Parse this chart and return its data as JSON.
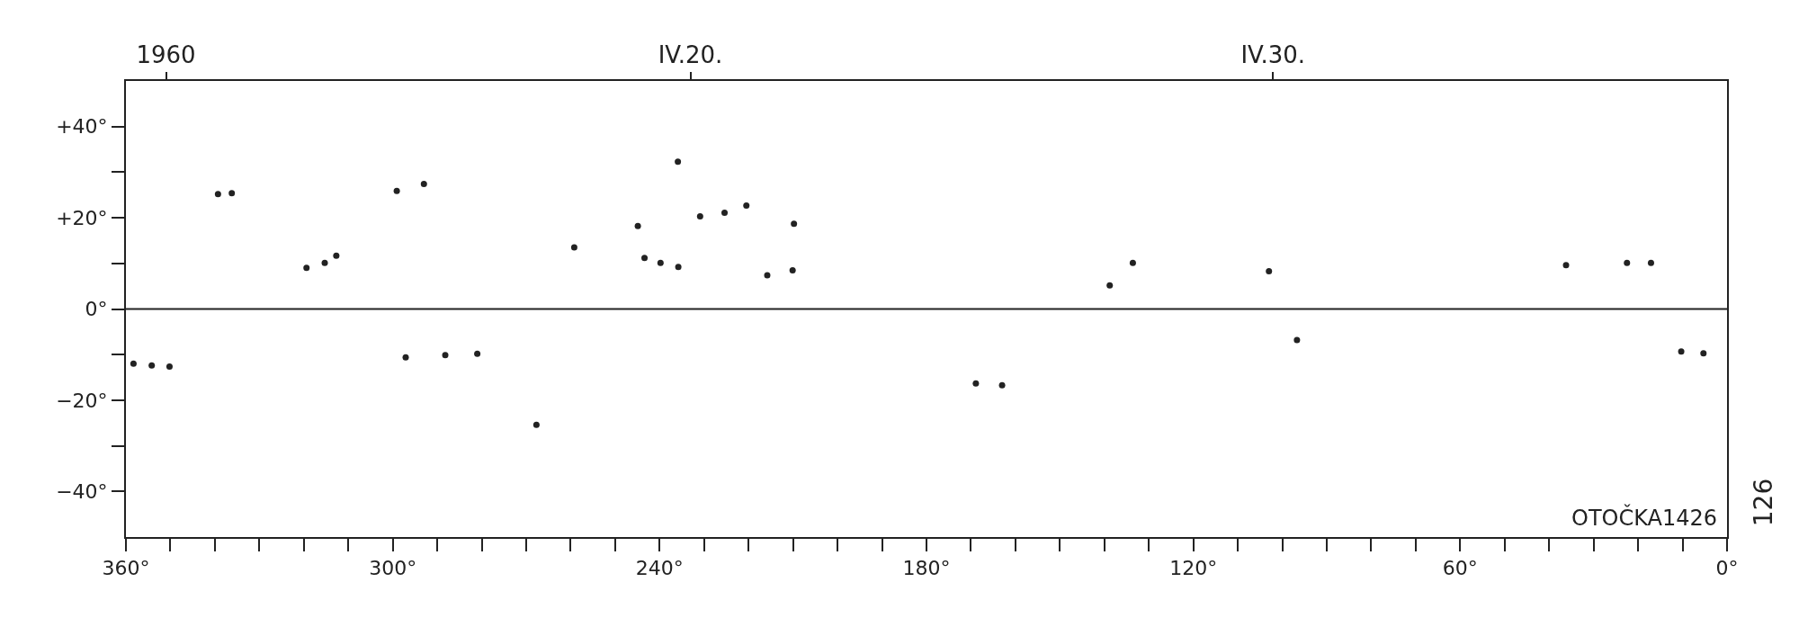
{
  "chart_data": {
    "type": "scatter",
    "x": [
      358.3,
      354.2,
      350.2,
      339.3,
      336.2,
      319.4,
      315.3,
      312.7,
      299.1,
      293.0,
      297.1,
      288.2,
      281.0,
      267.7,
      259.2,
      235.9,
      244.9,
      243.4,
      239.8,
      235.8,
      230.9,
      225.4,
      220.5,
      209.8,
      215.8,
      210.1,
      138.8,
      133.6,
      168.9,
      163.0,
      103.0,
      96.7,
      36.2,
      22.5,
      17.1,
      10.3,
      5.3
    ],
    "values": [
      -12.0,
      -12.4,
      -12.6,
      25.2,
      25.4,
      9.0,
      10.1,
      11.7,
      25.9,
      27.4,
      -10.6,
      -10.1,
      -9.8,
      -25.4,
      13.5,
      32.3,
      18.2,
      11.2,
      10.1,
      9.2,
      20.3,
      21.1,
      22.7,
      18.7,
      7.4,
      8.5,
      5.2,
      10.1,
      -16.3,
      -16.7,
      8.3,
      -6.8,
      9.6,
      10.1,
      10.1,
      -9.3,
      -9.7
    ],
    "color": "#222222",
    "marker": "circle",
    "xlim": [
      360,
      0
    ],
    "xticks": [
      {
        "value": 360,
        "label": "360°"
      },
      {
        "value": 350,
        "label": null
      },
      {
        "value": 340,
        "label": null
      },
      {
        "value": 330,
        "label": null
      },
      {
        "value": 320,
        "label": null
      },
      {
        "value": 310,
        "label": null
      },
      {
        "value": 300,
        "label": "300°"
      },
      {
        "value": 290,
        "label": null
      },
      {
        "value": 280,
        "label": null
      },
      {
        "value": 270,
        "label": null
      },
      {
        "value": 260,
        "label": null
      },
      {
        "value": 250,
        "label": null
      },
      {
        "value": 240,
        "label": "240°"
      },
      {
        "value": 230,
        "label": null
      },
      {
        "value": 220,
        "label": null
      },
      {
        "value": 210,
        "label": null
      },
      {
        "value": 200,
        "label": null
      },
      {
        "value": 190,
        "label": null
      },
      {
        "value": 180,
        "label": "180°"
      },
      {
        "value": 170,
        "label": null
      },
      {
        "value": 160,
        "label": null
      },
      {
        "value": 150,
        "label": null
      },
      {
        "value": 140,
        "label": null
      },
      {
        "value": 130,
        "label": null
      },
      {
        "value": 120,
        "label": "120°"
      },
      {
        "value": 110,
        "label": null
      },
      {
        "value": 100,
        "label": null
      },
      {
        "value": 90,
        "label": null
      },
      {
        "value": 80,
        "label": null
      },
      {
        "value": 70,
        "label": null
      },
      {
        "value": 60,
        "label": "60°"
      },
      {
        "value": 50,
        "label": null
      },
      {
        "value": 40,
        "label": null
      },
      {
        "value": 30,
        "label": null
      },
      {
        "value": 20,
        "label": null
      },
      {
        "value": 10,
        "label": null
      },
      {
        "value": 0,
        "label": "0°"
      }
    ],
    "x2lim": [
      "1960-04-10T07:30",
      "1960-05-07T19:00"
    ],
    "x2ticks": [
      {
        "value": "1960-04-11",
        "label": "1960"
      },
      {
        "value": "1960-04-20",
        "label": "IV.20."
      },
      {
        "value": "1960-04-30",
        "label": "IV.30."
      }
    ],
    "ylim": [
      -50,
      50
    ],
    "yticks": [
      {
        "value": 40,
        "label": "+40°"
      },
      {
        "value": 30,
        "label": null
      },
      {
        "value": 20,
        "label": "+20°"
      },
      {
        "value": 10,
        "label": null
      },
      {
        "value": 0,
        "label": "0°"
      },
      {
        "value": -10,
        "label": null
      },
      {
        "value": -20,
        "label": "−20°"
      },
      {
        "value": -30,
        "label": null
      },
      {
        "value": -40,
        "label": "−40°"
      }
    ],
    "ref_lines": [
      {
        "axis": "y",
        "value": 0,
        "color": "#222222"
      }
    ],
    "annotations": [
      "OTOČKA1426",
      "126"
    ]
  }
}
